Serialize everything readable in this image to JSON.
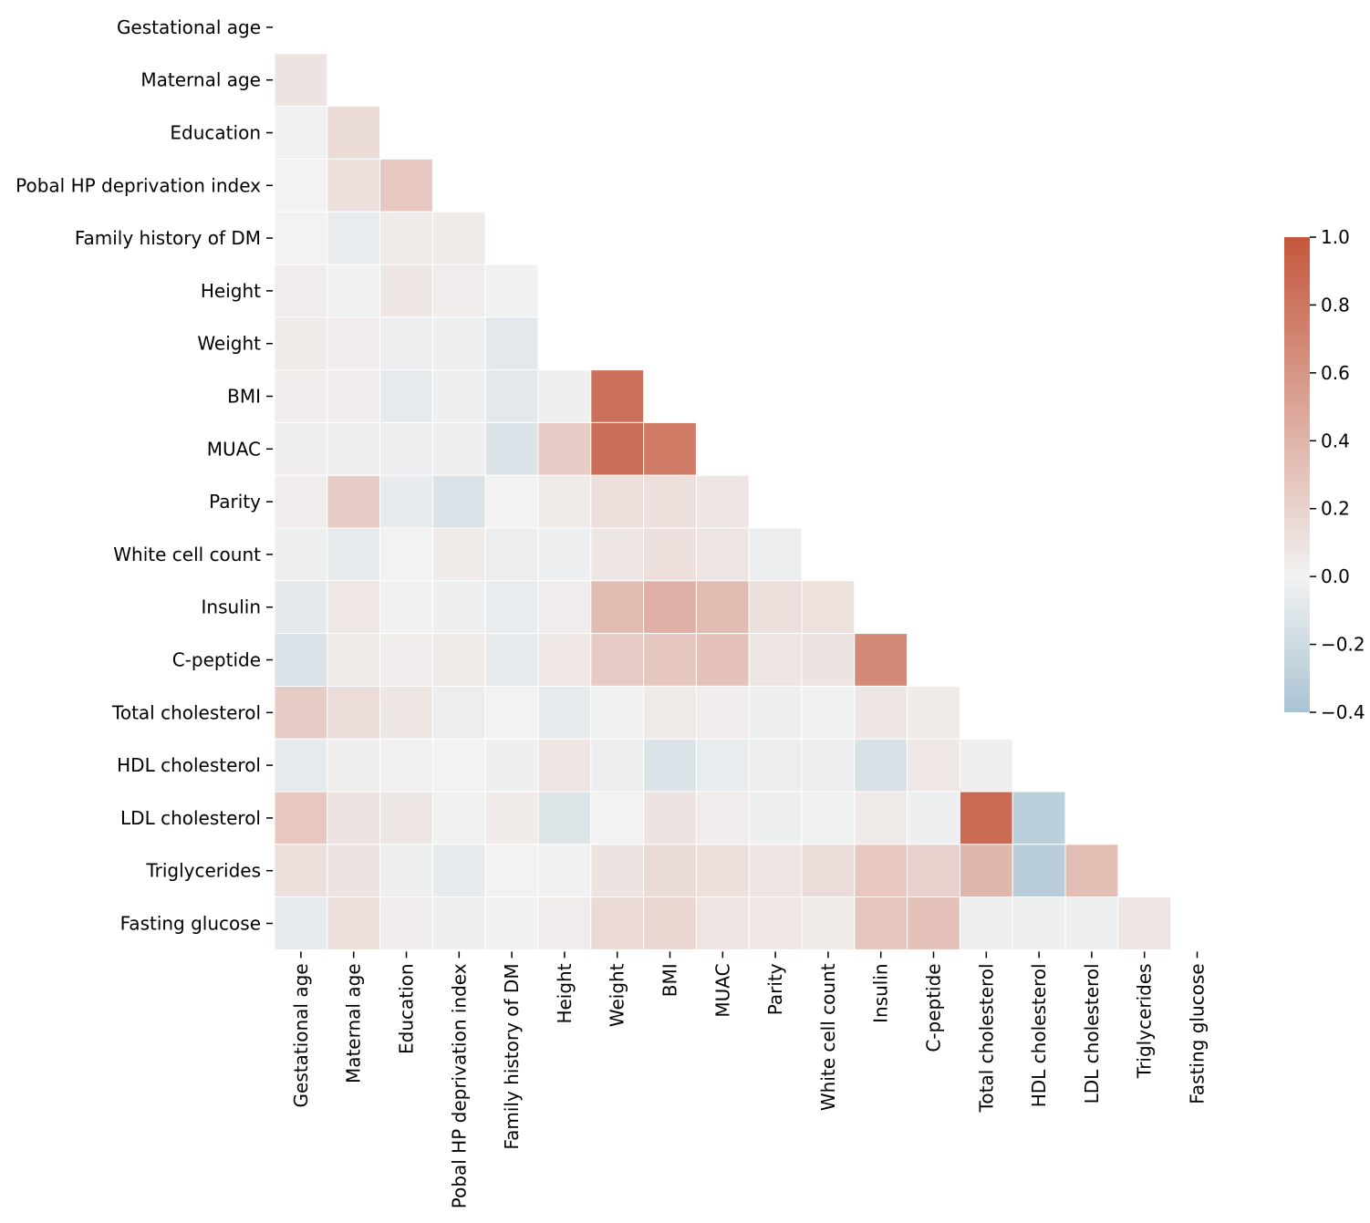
{
  "chart_data": {
    "type": "heatmap",
    "title": "",
    "xlabel": "",
    "ylabel": "",
    "mask": "upper-triangle-including-diagonal",
    "variables": [
      "Gestational age",
      "Maternal age",
      "Education",
      "Pobal HP deprivation index",
      "Family history of DM",
      "Height",
      "Weight",
      "BMI",
      "MUAC",
      "Parity",
      "White cell count",
      "Insulin",
      "C-peptide",
      "Total cholesterol",
      "HDL cholesterol",
      "LDL cholesterol",
      "Triglycerides",
      "Fasting glucose"
    ],
    "correlations": [
      [],
      [
        0.1
      ],
      [
        -0.01,
        0.15
      ],
      [
        0.0,
        0.12,
        0.27
      ],
      [
        0.0,
        -0.05,
        0.05,
        0.05
      ],
      [
        0.04,
        -0.01,
        0.08,
        0.04,
        -0.01
      ],
      [
        0.05,
        0.03,
        -0.04,
        -0.03,
        -0.09
      ],
      [
        0.04,
        0.04,
        -0.07,
        -0.03,
        -0.09,
        -0.02,
        0.83
      ],
      [
        0.02,
        -0.02,
        -0.04,
        -0.03,
        -0.13,
        0.25,
        0.85,
        0.77
      ],
      [
        0.04,
        0.25,
        -0.06,
        -0.14,
        0.0,
        0.05,
        0.12,
        0.12,
        0.08
      ],
      [
        -0.02,
        -0.06,
        0.0,
        0.05,
        -0.04,
        -0.03,
        0.08,
        0.12,
        0.09,
        -0.04
      ],
      [
        -0.08,
        0.07,
        0.01,
        -0.02,
        -0.05,
        0.04,
        0.35,
        0.42,
        0.35,
        0.13,
        0.11
      ],
      [
        -0.14,
        0.06,
        0.04,
        0.05,
        -0.07,
        0.07,
        0.26,
        0.28,
        0.31,
        0.08,
        0.1,
        0.68
      ],
      [
        0.25,
        0.14,
        0.08,
        -0.04,
        0.0,
        -0.06,
        -0.01,
        0.06,
        0.03,
        -0.02,
        -0.01,
        0.08,
        0.05
      ],
      [
        -0.07,
        0.02,
        0.01,
        0.0,
        -0.02,
        0.09,
        -0.04,
        -0.13,
        -0.05,
        -0.04,
        -0.04,
        -0.15,
        0.07,
        0.02
      ],
      [
        0.27,
        0.1,
        0.08,
        -0.01,
        0.05,
        -0.11,
        0.0,
        0.1,
        0.04,
        -0.02,
        -0.01,
        0.06,
        -0.03,
        0.88,
        -0.3
      ],
      [
        0.12,
        0.1,
        -0.03,
        -0.07,
        0.0,
        -0.01,
        0.1,
        0.15,
        0.12,
        0.08,
        0.14,
        0.27,
        0.21,
        0.38,
        -0.32,
        0.34
      ],
      [
        -0.07,
        0.13,
        0.04,
        -0.02,
        -0.01,
        0.04,
        0.16,
        0.18,
        0.09,
        0.07,
        0.06,
        0.29,
        0.32,
        -0.03,
        -0.03,
        -0.03,
        0.09
      ]
    ],
    "colorbar": {
      "vmin": -0.4,
      "vmax": 1.0,
      "ticks": [
        1.0,
        0.8,
        0.6,
        0.4,
        0.2,
        0.0,
        -0.2,
        -0.4
      ],
      "tick_labels": [
        "1.0",
        "0.8",
        "0.6",
        "0.4",
        "0.2",
        "0.0",
        "−0.2",
        "−0.4"
      ]
    },
    "colors": {
      "negative": "#a9c4d3",
      "neutral": "#f2f2f2",
      "positive": "#c4573c"
    }
  }
}
